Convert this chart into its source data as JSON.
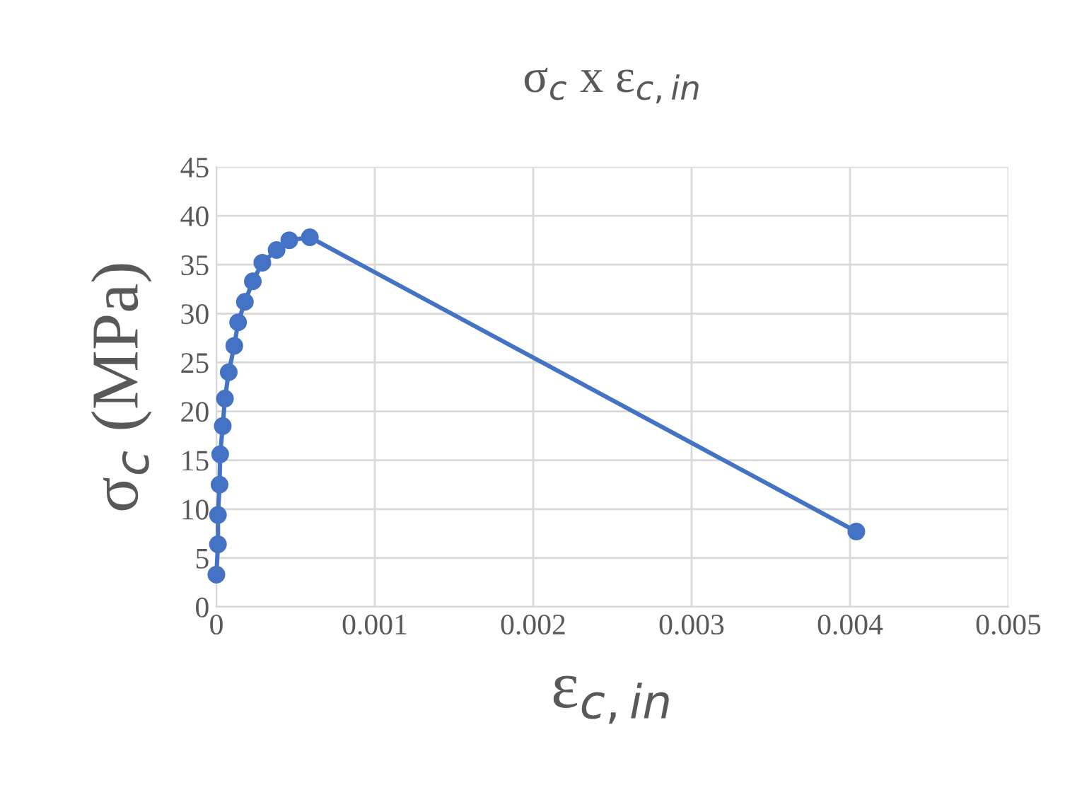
{
  "chart_data": {
    "type": "line",
    "title": "σ$_{c}$ x ε$_{c,in}$",
    "xlabel": "ε$_{c,in}$",
    "ylabel": "σ$_{c}$ (MPa)",
    "x": [
      0,
      1e-05,
      1e-05,
      2e-05,
      2.4e-05,
      4e-05,
      5.4e-05,
      7.8e-05,
      0.000113,
      0.000137,
      0.00018,
      0.00023,
      0.00029,
      0.00038,
      0.00046,
      0.00059,
      0.00404
    ],
    "series": [
      {
        "color": "#4472c4",
        "values": [
          3.3,
          6.4,
          9.4,
          12.5,
          15.6,
          18.5,
          21.3,
          24.0,
          26.7,
          29.1,
          31.2,
          33.3,
          35.2,
          36.5,
          37.5,
          37.8,
          7.7
        ]
      }
    ],
    "xlim": [
      0,
      0.005
    ],
    "xticks": [
      0,
      0.001,
      0.002,
      0.003,
      0.004,
      0.005
    ],
    "ylim": [
      0,
      45
    ],
    "yticks": [
      0,
      5,
      10,
      15,
      20,
      25,
      30,
      35,
      40,
      45
    ],
    "grid": true,
    "marker": "circle",
    "line_style": "solid"
  }
}
